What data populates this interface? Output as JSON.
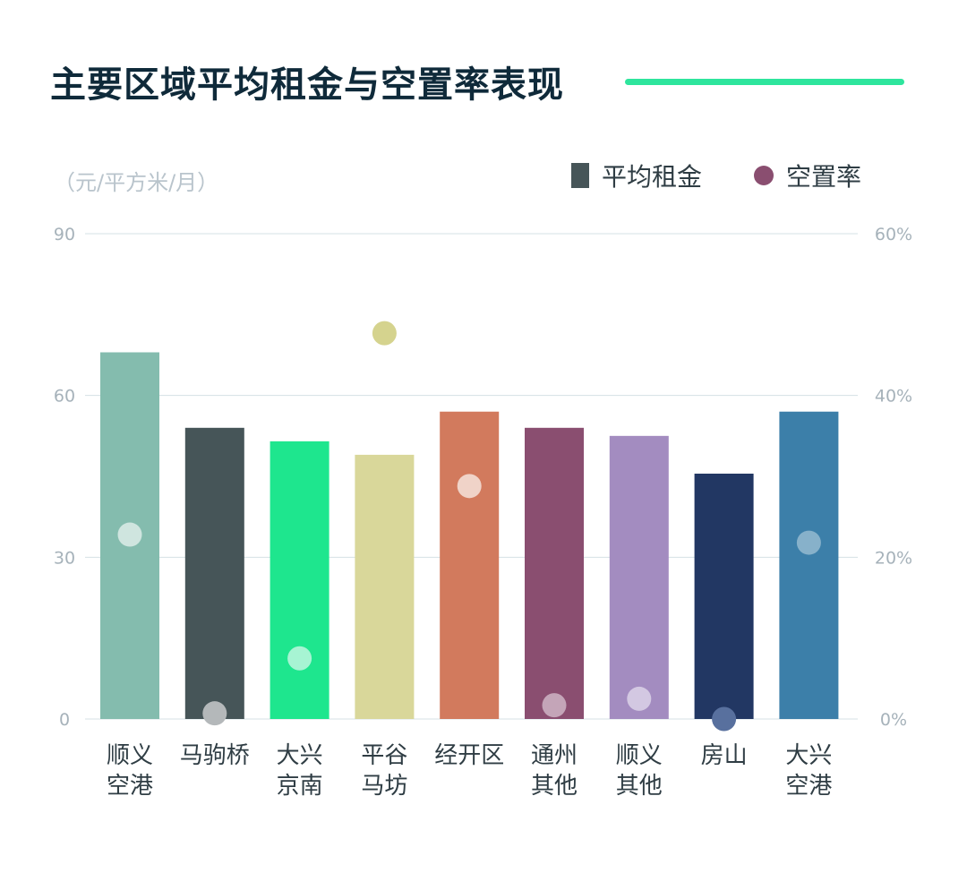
{
  "title": "主要区域平均租金与空置率表现",
  "unit_label": "（元/平方米/月）",
  "legend": {
    "rent_label": "平均租金",
    "vacancy_label": "空置率"
  },
  "colors": {
    "title": "#0f2a3a",
    "title_rule": "#2ee59d",
    "legend_rent": "#465558",
    "legend_vacancy": "#8a4e70",
    "grid": "#d5e1e4"
  },
  "chart_data": {
    "type": "bar",
    "title": "主要区域平均租金与空置率表现",
    "ylabel": "（元/平方米/月）",
    "ylim": [
      0,
      90
    ],
    "y_ticks": [
      "0",
      "30",
      "60",
      "90"
    ],
    "y2lim": [
      0,
      60
    ],
    "y2_ticks": [
      "0%",
      "20%",
      "40%",
      "60%"
    ],
    "grid": true,
    "legend_position": "top-right",
    "categories": [
      [
        "顺义",
        "空港"
      ],
      [
        "马驹桥"
      ],
      [
        "大兴",
        "京南"
      ],
      [
        "平谷",
        "马坊"
      ],
      [
        "经开区"
      ],
      [
        "通州",
        "其他"
      ],
      [
        "顺义",
        "其他"
      ],
      [
        "房山"
      ],
      [
        "大兴",
        "空港"
      ]
    ],
    "series": [
      {
        "name": "平均租金",
        "type": "bar",
        "axis": "left",
        "values": [
          68,
          54,
          51.5,
          49,
          57,
          54,
          52.5,
          45.5,
          57
        ],
        "colors": [
          "#84bcae",
          "#465558",
          "#1ee68e",
          "#d9d79a",
          "#d27a5d",
          "#8a4e70",
          "#a38cc0",
          "#223763",
          "#3c7fa9"
        ]
      },
      {
        "name": "空置率",
        "type": "scatter",
        "axis": "right",
        "unit": "%",
        "values": [
          22.8,
          0.7,
          7.5,
          47.7,
          28.8,
          1.7,
          2.5,
          0,
          21.8
        ],
        "colors": [
          "#cfe5df",
          "#b4b8ba",
          "#a7f4d3",
          "#d5d38e",
          "#f0d3c8",
          "#c4a5b8",
          "#d3c8e2",
          "#58709e",
          "#87b1ca"
        ]
      }
    ]
  }
}
